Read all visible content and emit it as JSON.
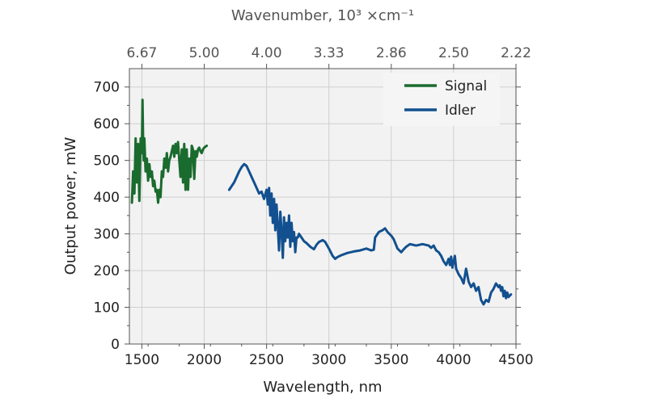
{
  "chart_data": {
    "type": "line",
    "xlabel": "Wavelength, nm",
    "ylabel": "Output power, mW",
    "top_axis_label": "Wavenumber, 10³ ×cm⁻¹",
    "xlim": [
      1400,
      4500
    ],
    "ylim": [
      0,
      750
    ],
    "x_ticks": [
      1500,
      2000,
      2500,
      3000,
      3500,
      4000,
      4500
    ],
    "y_ticks": [
      0,
      100,
      200,
      300,
      400,
      500,
      600,
      700
    ],
    "top_ticks": [
      {
        "label": "6.67",
        "wavelength": 1500
      },
      {
        "label": "5.00",
        "wavelength": 2000
      },
      {
        "label": "4.00",
        "wavelength": 2500
      },
      {
        "label": "3.33",
        "wavelength": 3000
      },
      {
        "label": "2.86",
        "wavelength": 3500
      },
      {
        "label": "2.50",
        "wavelength": 4000
      },
      {
        "label": "2.22",
        "wavelength": 4500
      }
    ],
    "grid": true,
    "legend_position": "top-right",
    "series": [
      {
        "name": "Signal",
        "color": "#1a6b2e",
        "points": [
          [
            1420,
            385
          ],
          [
            1430,
            470
          ],
          [
            1440,
            410
          ],
          [
            1450,
            560
          ],
          [
            1460,
            440
          ],
          [
            1470,
            545
          ],
          [
            1480,
            390
          ],
          [
            1490,
            560
          ],
          [
            1500,
            520
          ],
          [
            1505,
            665
          ],
          [
            1510,
            550
          ],
          [
            1515,
            500
          ],
          [
            1520,
            560
          ],
          [
            1530,
            470
          ],
          [
            1540,
            505
          ],
          [
            1550,
            445
          ],
          [
            1560,
            490
          ],
          [
            1570,
            455
          ],
          [
            1580,
            470
          ],
          [
            1590,
            430
          ],
          [
            1600,
            445
          ],
          [
            1610,
            415
          ],
          [
            1620,
            420
          ],
          [
            1630,
            385
          ],
          [
            1640,
            420
          ],
          [
            1650,
            400
          ],
          [
            1660,
            470
          ],
          [
            1670,
            455
          ],
          [
            1680,
            505
          ],
          [
            1690,
            480
          ],
          [
            1700,
            520
          ],
          [
            1710,
            470
          ],
          [
            1720,
            500
          ],
          [
            1730,
            510
          ],
          [
            1740,
            525
          ],
          [
            1750,
            540
          ],
          [
            1760,
            510
          ],
          [
            1770,
            545
          ],
          [
            1780,
            520
          ],
          [
            1790,
            550
          ],
          [
            1800,
            500
          ],
          [
            1810,
            455
          ],
          [
            1820,
            530
          ],
          [
            1830,
            440
          ],
          [
            1840,
            545
          ],
          [
            1850,
            420
          ],
          [
            1860,
            530
          ],
          [
            1870,
            420
          ],
          [
            1880,
            505
          ],
          [
            1890,
            455
          ],
          [
            1900,
            540
          ],
          [
            1910,
            530
          ],
          [
            1920,
            450
          ],
          [
            1930,
            525
          ],
          [
            1940,
            510
          ],
          [
            1950,
            530
          ],
          [
            1960,
            535
          ],
          [
            1970,
            525
          ],
          [
            1980,
            520
          ],
          [
            1990,
            530
          ],
          [
            2000,
            535
          ],
          [
            2020,
            540
          ]
        ]
      },
      {
        "name": "Idler",
        "color": "#12508f",
        "points": [
          [
            2200,
            420
          ],
          [
            2220,
            430
          ],
          [
            2240,
            440
          ],
          [
            2260,
            455
          ],
          [
            2280,
            470
          ],
          [
            2300,
            482
          ],
          [
            2320,
            490
          ],
          [
            2340,
            485
          ],
          [
            2360,
            470
          ],
          [
            2380,
            455
          ],
          [
            2400,
            440
          ],
          [
            2420,
            425
          ],
          [
            2440,
            410
          ],
          [
            2460,
            415
          ],
          [
            2480,
            395
          ],
          [
            2500,
            420
          ],
          [
            2510,
            380
          ],
          [
            2520,
            425
          ],
          [
            2530,
            350
          ],
          [
            2540,
            410
          ],
          [
            2550,
            330
          ],
          [
            2560,
            395
          ],
          [
            2570,
            310
          ],
          [
            2580,
            380
          ],
          [
            2590,
            320
          ],
          [
            2600,
            255
          ],
          [
            2610,
            360
          ],
          [
            2620,
            310
          ],
          [
            2630,
            235
          ],
          [
            2640,
            345
          ],
          [
            2650,
            280
          ],
          [
            2660,
            330
          ],
          [
            2670,
            290
          ],
          [
            2680,
            350
          ],
          [
            2690,
            265
          ],
          [
            2700,
            330
          ],
          [
            2710,
            280
          ],
          [
            2720,
            305
          ],
          [
            2730,
            250
          ],
          [
            2740,
            290
          ],
          [
            2750,
            290
          ],
          [
            2760,
            300
          ],
          [
            2780,
            290
          ],
          [
            2800,
            280
          ],
          [
            2820,
            275
          ],
          [
            2850,
            265
          ],
          [
            2880,
            258
          ],
          [
            2900,
            270
          ],
          [
            2920,
            278
          ],
          [
            2950,
            283
          ],
          [
            2970,
            278
          ],
          [
            3000,
            260
          ],
          [
            3030,
            240
          ],
          [
            3050,
            232
          ],
          [
            3070,
            237
          ],
          [
            3100,
            242
          ],
          [
            3150,
            248
          ],
          [
            3200,
            252
          ],
          [
            3250,
            255
          ],
          [
            3300,
            260
          ],
          [
            3340,
            255
          ],
          [
            3360,
            257
          ],
          [
            3370,
            290
          ],
          [
            3400,
            305
          ],
          [
            3430,
            310
          ],
          [
            3450,
            315
          ],
          [
            3470,
            305
          ],
          [
            3500,
            295
          ],
          [
            3520,
            285
          ],
          [
            3550,
            260
          ],
          [
            3580,
            250
          ],
          [
            3600,
            258
          ],
          [
            3620,
            265
          ],
          [
            3650,
            272
          ],
          [
            3700,
            268
          ],
          [
            3750,
            272
          ],
          [
            3800,
            268
          ],
          [
            3820,
            262
          ],
          [
            3840,
            268
          ],
          [
            3860,
            255
          ],
          [
            3880,
            250
          ],
          [
            3900,
            240
          ],
          [
            3920,
            225
          ],
          [
            3940,
            215
          ],
          [
            3960,
            232
          ],
          [
            3970,
            215
          ],
          [
            3980,
            238
          ],
          [
            3990,
            208
          ],
          [
            4000,
            225
          ],
          [
            4010,
            240
          ],
          [
            4020,
            205
          ],
          [
            4040,
            190
          ],
          [
            4060,
            180
          ],
          [
            4080,
            165
          ],
          [
            4100,
            205
          ],
          [
            4120,
            170
          ],
          [
            4140,
            155
          ],
          [
            4160,
            165
          ],
          [
            4180,
            145
          ],
          [
            4200,
            155
          ],
          [
            4220,
            120
          ],
          [
            4240,
            108
          ],
          [
            4260,
            120
          ],
          [
            4280,
            115
          ],
          [
            4300,
            140
          ],
          [
            4320,
            150
          ],
          [
            4340,
            165
          ],
          [
            4360,
            155
          ],
          [
            4370,
            160
          ],
          [
            4380,
            145
          ],
          [
            4390,
            155
          ],
          [
            4400,
            130
          ],
          [
            4410,
            145
          ],
          [
            4420,
            125
          ],
          [
            4430,
            140
          ],
          [
            4440,
            128
          ],
          [
            4460,
            135
          ]
        ]
      }
    ]
  }
}
